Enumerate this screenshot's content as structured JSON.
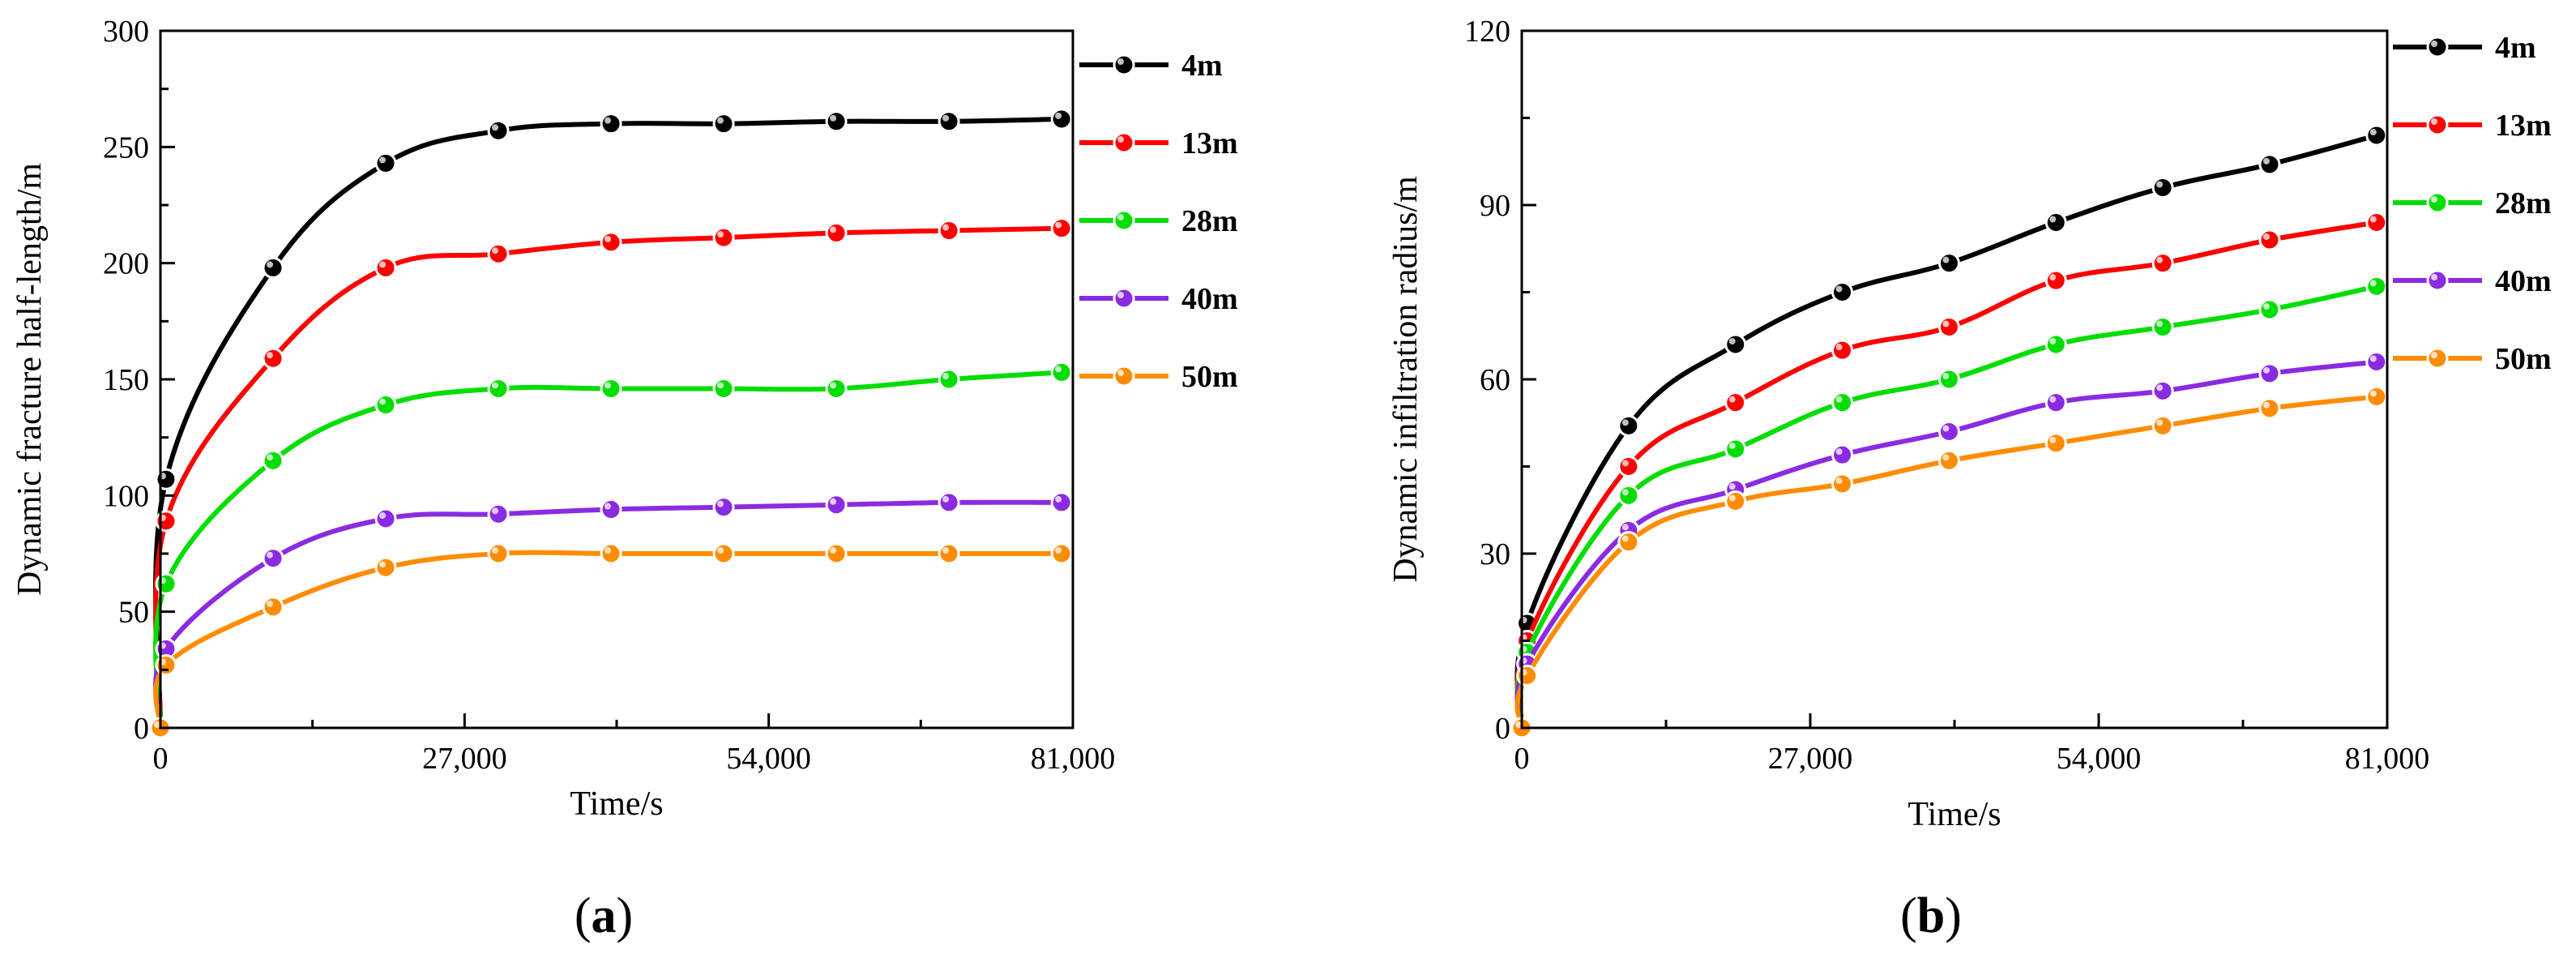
{
  "figure_labels": {
    "a": {
      "open": "(",
      "letter": "a",
      "close": ")"
    },
    "b": {
      "open": "(",
      "letter": "b",
      "close": ")"
    }
  },
  "chart_data": [
    {
      "id": "a",
      "type": "line",
      "title": "",
      "xlabel": "Time/s",
      "ylabel": "Dynamic fracture half-length/m",
      "xlim": [
        0,
        81000
      ],
      "ylim": [
        0,
        300
      ],
      "xticks": [
        0,
        27000,
        54000,
        81000
      ],
      "xtick_labels": [
        "0",
        "27,000",
        "54,000",
        "81,000"
      ],
      "yticks": [
        0,
        50,
        100,
        150,
        200,
        250,
        300
      ],
      "ytick_labels": [
        "0",
        "50",
        "100",
        "150",
        "200",
        "250",
        "300"
      ],
      "legend_position": "right-outside",
      "x": [
        0,
        500,
        10000,
        20000,
        30000,
        40000,
        50000,
        60000,
        70000,
        80000
      ],
      "series": [
        {
          "name": "4m",
          "color": "#000000",
          "values": [
            0,
            107,
            198,
            243,
            257,
            260,
            260,
            261,
            261,
            262
          ]
        },
        {
          "name": "13m",
          "color": "#ff0000",
          "values": [
            0,
            89,
            159,
            198,
            204,
            209,
            211,
            213,
            214,
            215
          ]
        },
        {
          "name": "28m",
          "color": "#00dd00",
          "values": [
            0,
            62,
            115,
            139,
            146,
            146,
            146,
            146,
            150,
            153
          ]
        },
        {
          "name": "40m",
          "color": "#8a2be2",
          "values": [
            0,
            34,
            73,
            90,
            92,
            94,
            95,
            96,
            97,
            97
          ]
        },
        {
          "name": "50m",
          "color": "#ff8c00",
          "values": [
            0,
            27,
            52,
            69,
            75,
            75,
            75,
            75,
            75,
            75
          ]
        }
      ]
    },
    {
      "id": "b",
      "type": "line",
      "title": "",
      "xlabel": "Time/s",
      "ylabel": "Dynamic infiltration radius/m",
      "xlim": [
        0,
        81000
      ],
      "ylim": [
        0,
        120
      ],
      "xticks": [
        0,
        27000,
        54000,
        81000
      ],
      "xtick_labels": [
        "0",
        "27,000",
        "54,000",
        "81,000"
      ],
      "yticks": [
        0,
        30,
        60,
        90,
        120
      ],
      "ytick_labels": [
        "0",
        "30",
        "60",
        "90",
        "120"
      ],
      "legend_position": "right-outside",
      "x": [
        0,
        500,
        10000,
        20000,
        30000,
        40000,
        50000,
        60000,
        70000,
        80000
      ],
      "series": [
        {
          "name": "4m",
          "color": "#000000",
          "values": [
            0,
            18,
            52,
            66,
            75,
            80,
            87,
            93,
            97,
            102
          ]
        },
        {
          "name": "13m",
          "color": "#ff0000",
          "values": [
            0,
            15,
            45,
            56,
            65,
            69,
            77,
            80,
            84,
            87
          ]
        },
        {
          "name": "28m",
          "color": "#00dd00",
          "values": [
            0,
            13,
            40,
            48,
            56,
            60,
            66,
            69,
            72,
            76
          ]
        },
        {
          "name": "40m",
          "color": "#8a2be2",
          "values": [
            0,
            11,
            34,
            41,
            47,
            51,
            56,
            58,
            61,
            63
          ]
        },
        {
          "name": "50m",
          "color": "#ff8c00",
          "values": [
            0,
            9,
            32,
            39,
            42,
            46,
            49,
            52,
            55,
            57
          ]
        }
      ]
    }
  ]
}
